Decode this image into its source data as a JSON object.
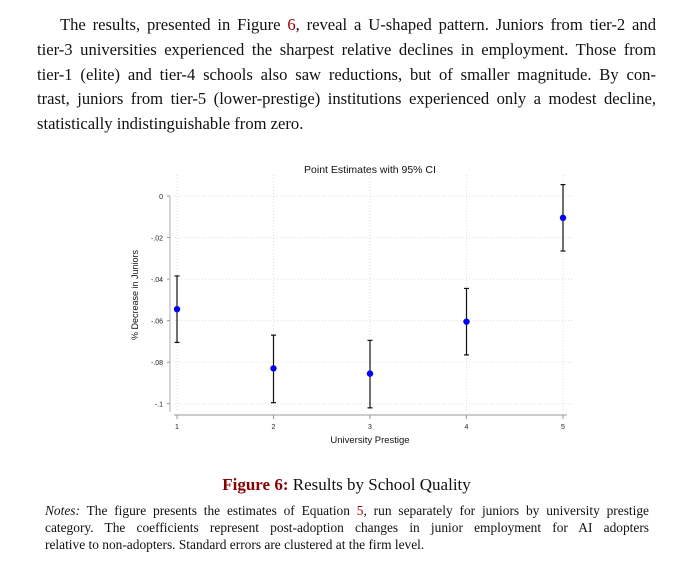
{
  "paragraph": {
    "lines": [
      [
        "The results, presented in Figure ",
        "6",
        ", reveal a U-shaped pattern. Juniors from tier-2 and"
      ],
      [
        "tier-3 universities experienced the sharpest relative declines in employment. Those from"
      ],
      [
        "tier-1 (elite) and tier-4 schools also saw reductions, but of smaller magnitude. By con-"
      ],
      [
        "trast, juniors from tier-5 (lower-prestige) institutions experienced only a modest decline,"
      ],
      [
        "statistically indistinguishable from zero."
      ]
    ]
  },
  "caption": {
    "label": "Figure 6:",
    "text": " Results by School Quality"
  },
  "notes": {
    "label": "Notes:",
    "lines": [
      [
        " The figure presents the estimates of Equation ",
        "5",
        ", run separately for juniors by university prestige"
      ],
      [
        "category.  The coefficients represent post-adoption changes in junior employment for AI adopters"
      ],
      [
        "relative to non-adopters. Standard errors are clustered at the firm level."
      ]
    ]
  },
  "colors": {
    "point": "#0000ff",
    "ref": "#a00000"
  },
  "chart_data": {
    "type": "scatter",
    "title": "Point Estimates with 95% CI",
    "xlabel": "University Prestige",
    "ylabel": "% Decrease in Juniors",
    "x": [
      1,
      2,
      3,
      4,
      5
    ],
    "xticks": [
      "1",
      "2",
      "3",
      "4",
      "5"
    ],
    "yticks": [
      0,
      -0.02,
      -0.04,
      -0.06,
      -0.08,
      -0.1
    ],
    "ytick_labels": [
      "0",
      "-.02",
      "-.04",
      "-.06",
      "-.08",
      "-.1"
    ],
    "ylim": [
      -0.1,
      0
    ],
    "grid": true,
    "series": [
      {
        "name": "Point estimate",
        "values": [
          -0.0545,
          -0.083,
          -0.0855,
          -0.0605,
          -0.0105
        ],
        "ci_low": [
          -0.0705,
          -0.0995,
          -0.102,
          -0.0765,
          -0.0265
        ],
        "ci_high": [
          -0.0385,
          -0.067,
          -0.0695,
          -0.0445,
          0.0055
        ]
      }
    ]
  }
}
